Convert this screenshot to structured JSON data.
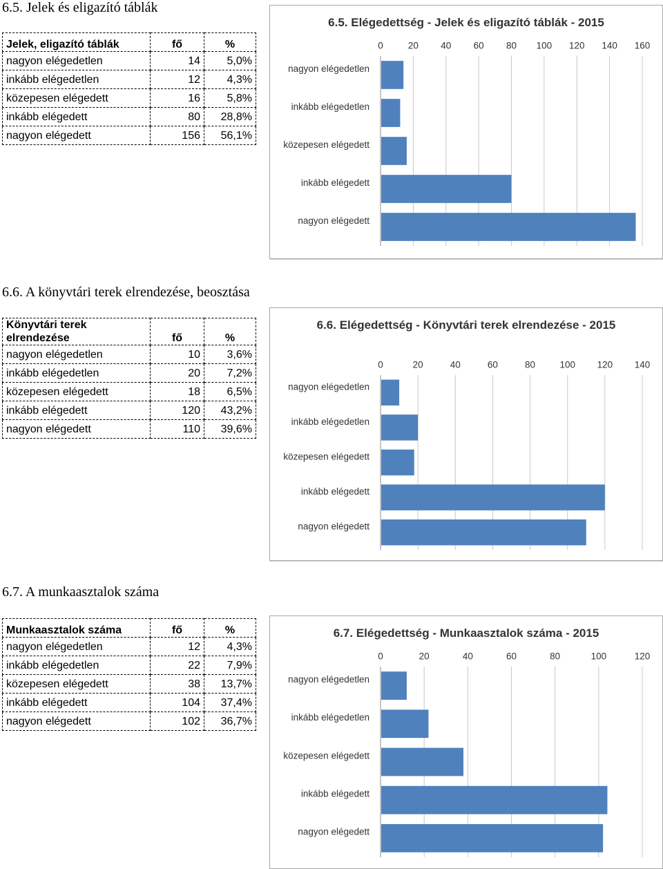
{
  "sections": [
    {
      "heading": "6.5. Jelek és eligazító táblák",
      "table": {
        "header": [
          "Jelek, eligazító táblák",
          "fő",
          "%"
        ],
        "rows": [
          [
            "nagyon elégedetlen",
            "14",
            "5,0%"
          ],
          [
            "inkább elégedetlen",
            "12",
            "4,3%"
          ],
          [
            "közepesen elégedett",
            "16",
            "5,8%"
          ],
          [
            "inkább elégedett",
            "80",
            "28,8%"
          ],
          [
            "nagyon elégedett",
            "156",
            "56,1%"
          ]
        ]
      },
      "chart_data": {
        "type": "bar",
        "title": "6.5. Elégedettség - Jelek és eligazító táblák - 2015",
        "categories": [
          "nagyon elégedetlen",
          "inkább elégedetlen",
          "közepesen elégedett",
          "inkább elégedett",
          "nagyon elégedett"
        ],
        "values": [
          14,
          12,
          16,
          80,
          156
        ],
        "color": "#4f81bd",
        "xlim": [
          0,
          160
        ],
        "xticks": [
          0,
          20,
          40,
          60,
          80,
          100,
          120,
          140,
          160
        ],
        "grid": true
      }
    },
    {
      "heading": "6.6. A könyvtári terek elrendezése, beosztása",
      "table": {
        "header": [
          "Könyvtári terek elrendezése",
          "fő",
          "%"
        ],
        "rows": [
          [
            "nagyon elégedetlen",
            "10",
            "3,6%"
          ],
          [
            "inkább elégedetlen",
            "20",
            "7,2%"
          ],
          [
            "közepesen elégedett",
            "18",
            "6,5%"
          ],
          [
            "inkább elégedett",
            "120",
            "43,2%"
          ],
          [
            "nagyon elégedett",
            "110",
            "39,6%"
          ]
        ]
      },
      "chart_data": {
        "type": "bar",
        "title": "6.6. Elégedettség - Könyvtári terek elrendezése - 2015",
        "categories": [
          "nagyon elégedetlen",
          "inkább elégedetlen",
          "közepesen elégedett",
          "inkább elégedett",
          "nagyon elégedett"
        ],
        "values": [
          10,
          20,
          18,
          120,
          110
        ],
        "color": "#4f81bd",
        "xlim": [
          0,
          140
        ],
        "xticks": [
          0,
          20,
          40,
          60,
          80,
          100,
          120,
          140
        ],
        "grid": true
      }
    },
    {
      "heading": "6.7. A munkaasztalok száma",
      "table": {
        "header": [
          "Munkaasztalok száma",
          "fő",
          "%"
        ],
        "rows": [
          [
            "nagyon elégedetlen",
            "12",
            "4,3%"
          ],
          [
            "inkább elégedetlen",
            "22",
            "7,9%"
          ],
          [
            "közepesen elégedett",
            "38",
            "13,7%"
          ],
          [
            "inkább elégedett",
            "104",
            "37,4%"
          ],
          [
            "nagyon elégedett",
            "102",
            "36,7%"
          ]
        ]
      },
      "chart_data": {
        "type": "bar",
        "title": "6.7. Elégedettség - Munkaasztalok száma - 2015",
        "categories": [
          "nagyon elégedetlen",
          "inkább elégedetlen",
          "közepesen elégedett",
          "inkább elégedett",
          "nagyon elégedett"
        ],
        "values": [
          12,
          22,
          38,
          104,
          102
        ],
        "color": "#4f81bd",
        "xlim": [
          0,
          120
        ],
        "xticks": [
          0,
          20,
          40,
          60,
          80,
          100,
          120
        ],
        "grid": true
      }
    }
  ]
}
